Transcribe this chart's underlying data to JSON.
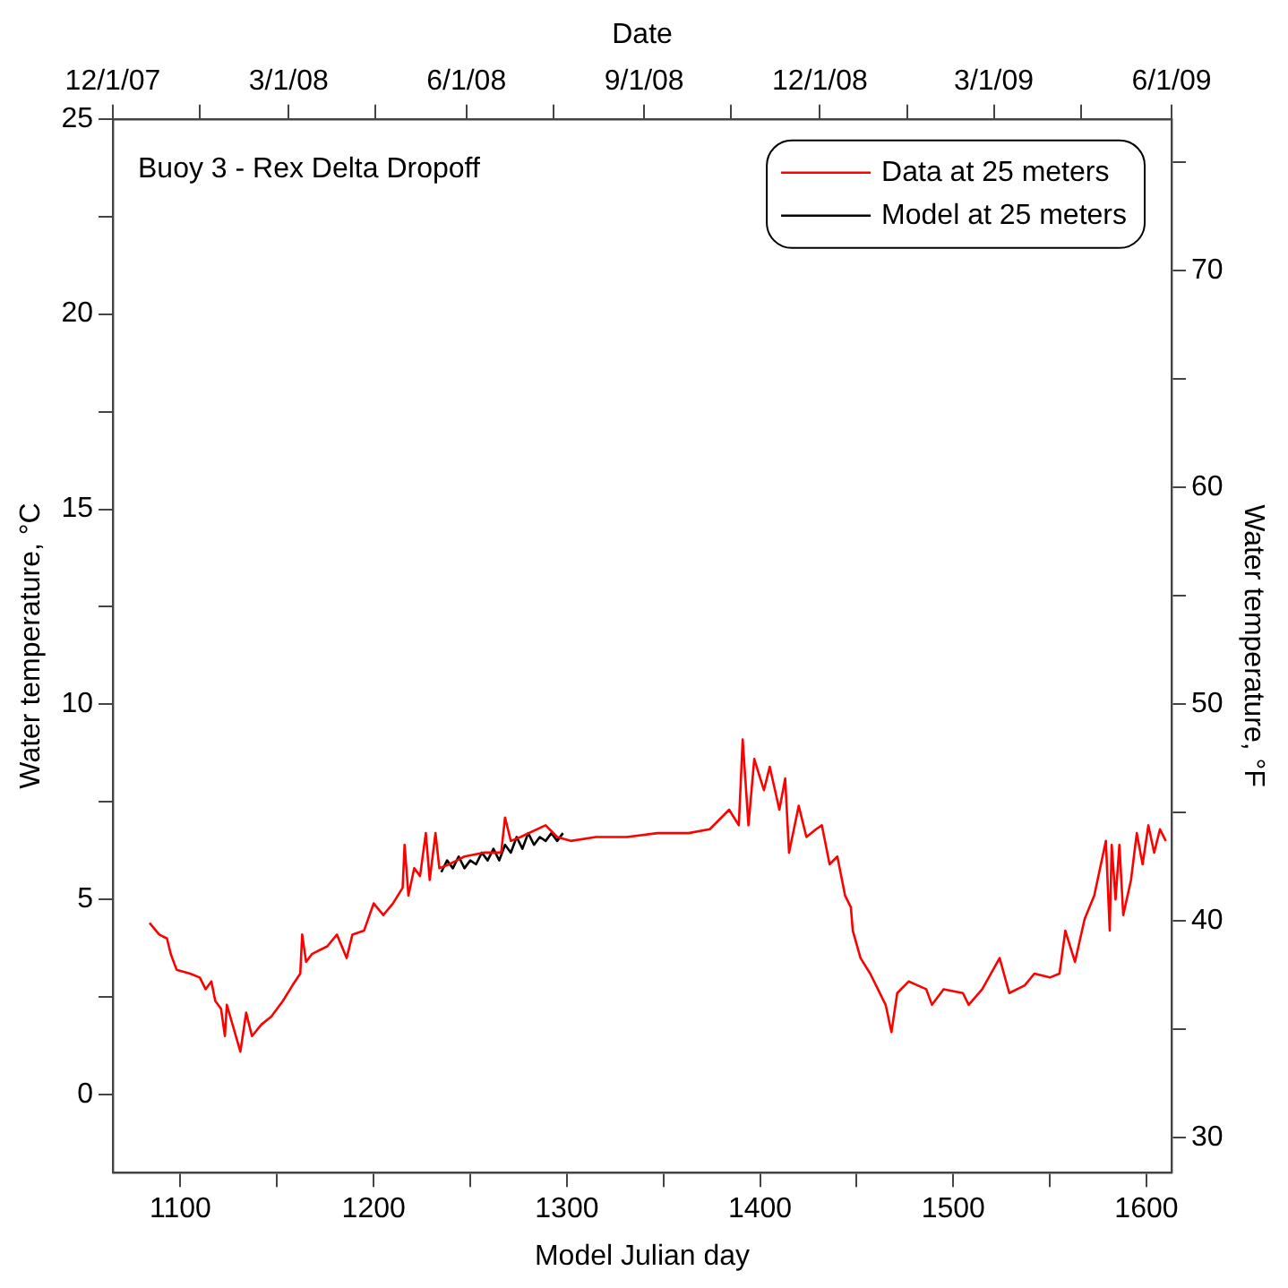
{
  "chart_data": {
    "type": "line",
    "xlabel": "Model Julian day",
    "x2label": "Date",
    "ylabel": "Water temperature, °C",
    "y2label": "Water temperature, °F",
    "annotations": [
      "Buoy 3 - Rex Delta Dropoff"
    ],
    "legend": "top right",
    "xlim": [
      1065,
      1613
    ],
    "xticks": [
      1100,
      {
        "value": 1150,
        "label": null
      },
      1200,
      {
        "value": 1250,
        "label": null
      },
      1300,
      {
        "value": 1350,
        "label": null
      },
      1400,
      {
        "value": 1450,
        "label": null
      },
      1500,
      {
        "value": 1550,
        "label": null
      },
      1600
    ],
    "ylim": [
      -2,
      25
    ],
    "yticks": [
      0,
      {
        "value": 2.5,
        "label": null
      },
      5,
      {
        "value": 7.5,
        "label": null
      },
      10,
      {
        "value": 12.5,
        "label": null
      },
      15,
      {
        "value": 17.5,
        "label": null
      },
      20,
      {
        "value": 22.5,
        "label": null
      },
      25
    ],
    "y2lim": [
      28.4,
      77
    ],
    "y2ticks": [
      30,
      {
        "value": 35,
        "label": null
      },
      40,
      {
        "value": 45,
        "label": null
      },
      50,
      {
        "value": 55,
        "label": null
      },
      60,
      {
        "value": 65,
        "label": null
      },
      70,
      {
        "value": 75,
        "label": null
      }
    ],
    "x2lim": [
      "2007-12-01",
      "2009-06-01"
    ],
    "x2ticks": [
      {
        "value": "2007-12-01",
        "label": "12/1/07"
      },
      {
        "value": "2008-01-15",
        "label": null
      },
      {
        "value": "2008-03-01",
        "label": "3/1/08"
      },
      {
        "value": "2008-04-15",
        "label": null
      },
      {
        "value": "2008-06-01",
        "label": "6/1/08"
      },
      {
        "value": "2008-07-16",
        "label": null
      },
      {
        "value": "2008-09-01",
        "label": "9/1/08"
      },
      {
        "value": "2008-10-16",
        "label": null
      },
      {
        "value": "2008-12-01",
        "label": "12/1/08"
      },
      {
        "value": "2009-01-15",
        "label": null
      },
      {
        "value": "2009-03-01",
        "label": "3/1/09"
      },
      {
        "value": "2009-04-15",
        "label": null
      },
      {
        "value": "2009-06-01",
        "label": "6/1/09"
      }
    ],
    "series": [
      {
        "name": "Data at 25 meters",
        "color": "#ff0000",
        "x": [
          1084,
          1089,
          1093,
          1095,
          1098,
          1105,
          1110,
          1113,
          1116,
          1118,
          1121,
          1123,
          1124,
          1131,
          1134,
          1137,
          1142,
          1147,
          1153,
          1158,
          1162,
          1163,
          1165,
          1168,
          1176,
          1181,
          1186,
          1189,
          1195,
          1200,
          1205,
          1210,
          1215,
          1216,
          1218,
          1221,
          1224,
          1227,
          1229,
          1232,
          1234,
          1239,
          1247,
          1257,
          1266,
          1268,
          1271,
          1276,
          1289,
          1295,
          1302,
          1315,
          1331,
          1347,
          1363,
          1374,
          1384,
          1389,
          1391,
          1394,
          1397,
          1402,
          1405,
          1410,
          1413,
          1415,
          1420,
          1424,
          1429,
          1432,
          1436,
          1440,
          1444,
          1447,
          1448,
          1452,
          1457,
          1461,
          1465,
          1468,
          1471,
          1477,
          1486,
          1489,
          1495,
          1505,
          1508,
          1515,
          1524,
          1529,
          1537,
          1542,
          1550,
          1555,
          1558,
          1563,
          1568,
          1573,
          1576,
          1579,
          1581,
          1582,
          1584,
          1586,
          1588,
          1592,
          1595,
          1598,
          1601,
          1604,
          1607,
          1610
        ],
        "values": [
          4.4,
          4.1,
          4.0,
          3.6,
          3.2,
          3.1,
          3.0,
          2.7,
          2.9,
          2.4,
          2.2,
          1.5,
          2.3,
          1.1,
          2.1,
          1.5,
          1.8,
          2.0,
          2.4,
          2.8,
          3.1,
          4.1,
          3.4,
          3.6,
          3.8,
          4.1,
          3.5,
          4.1,
          4.2,
          4.9,
          4.6,
          4.9,
          5.3,
          6.4,
          5.1,
          5.8,
          5.6,
          6.7,
          5.5,
          6.7,
          5.8,
          5.9,
          6.1,
          6.2,
          6.2,
          7.1,
          6.5,
          6.6,
          6.9,
          6.6,
          6.5,
          6.6,
          6.6,
          6.7,
          6.7,
          6.8,
          7.3,
          6.9,
          9.1,
          6.9,
          8.6,
          7.8,
          8.4,
          7.3,
          8.1,
          6.2,
          7.4,
          6.6,
          6.8,
          6.9,
          5.9,
          6.1,
          5.1,
          4.8,
          4.2,
          3.5,
          3.1,
          2.7,
          2.3,
          1.6,
          2.6,
          2.9,
          2.7,
          2.3,
          2.7,
          2.6,
          2.3,
          2.7,
          3.5,
          2.6,
          2.8,
          3.1,
          3.0,
          3.1,
          4.2,
          3.4,
          4.5,
          5.1,
          5.8,
          6.5,
          4.2,
          6.4,
          5.0,
          6.4,
          4.6,
          5.5,
          6.7,
          5.9,
          6.9,
          6.2,
          6.8,
          6.5
        ]
      },
      {
        "name": "Model at 25 meters",
        "color": "#000000",
        "x": [
          1235,
          1238,
          1241,
          1244,
          1247,
          1250,
          1253,
          1256,
          1259,
          1262,
          1265,
          1268,
          1271,
          1274,
          1277,
          1280,
          1283,
          1286,
          1289,
          1292,
          1295,
          1298
        ],
        "values": [
          5.7,
          6.0,
          5.8,
          6.1,
          5.8,
          6.0,
          5.9,
          6.2,
          6.0,
          6.3,
          6.0,
          6.4,
          6.2,
          6.6,
          6.3,
          6.7,
          6.4,
          6.6,
          6.5,
          6.7,
          6.5,
          6.7
        ]
      }
    ]
  }
}
